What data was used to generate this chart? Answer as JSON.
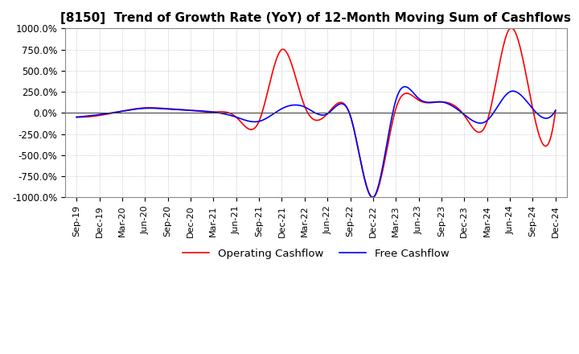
{
  "title": "[8150]  Trend of Growth Rate (YoY) of 12-Month Moving Sum of Cashflows",
  "title_fontsize": 11,
  "ylim": [
    -1000,
    1000
  ],
  "yticks": [
    -1000,
    -750,
    -500,
    -250,
    0,
    250,
    500,
    750,
    1000
  ],
  "ytick_labels": [
    "-1000.0%",
    "-750.0%",
    "-500.0%",
    "-250.0%",
    "0.0%",
    "250.0%",
    "500.0%",
    "750.0%",
    "1000.0%"
  ],
  "bg_color": "#ffffff",
  "plot_bg_color": "#ffffff",
  "grid_color": "#aaaaaa",
  "operating_color": "#ff0000",
  "free_color": "#0000ff",
  "legend_labels": [
    "Operating Cashflow",
    "Free Cashflow"
  ],
  "x_labels": [
    "Sep-19",
    "Dec-19",
    "Mar-20",
    "Jun-20",
    "Sep-20",
    "Dec-20",
    "Mar-21",
    "Jun-21",
    "Sep-21",
    "Dec-21",
    "Mar-22",
    "Jun-22",
    "Sep-22",
    "Dec-22",
    "Mar-23",
    "Jun-23",
    "Sep-23",
    "Dec-23",
    "Mar-24",
    "Jun-24",
    "Sep-24",
    "Dec-24"
  ]
}
